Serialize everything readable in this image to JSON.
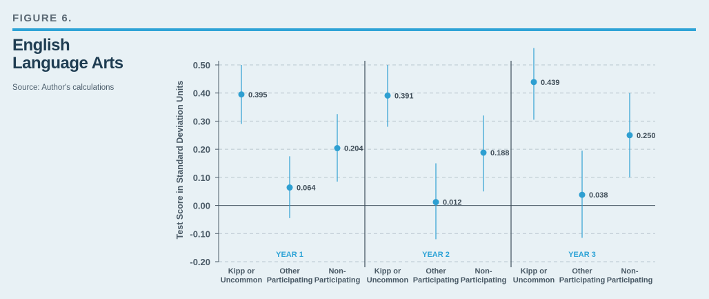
{
  "figure": {
    "label": "FIGURE 6.",
    "title_line1": "English",
    "title_line2": "Language Arts",
    "source": "Source: Author's calculations"
  },
  "colors": {
    "accent": "#2ea3d6",
    "point": "#2e9fd1",
    "title": "#1f3d52"
  },
  "chart_data": {
    "type": "scatter",
    "ylabel": "Test Score in Standard Deviation Units",
    "ylim": [
      -0.2,
      0.5
    ],
    "yticks": [
      "0.50",
      "0.40",
      "0.30",
      "0.20",
      "0.10",
      "0.00",
      "-0.10",
      "-0.20"
    ],
    "ytick_values": [
      0.5,
      0.4,
      0.3,
      0.2,
      0.1,
      0.0,
      -0.1,
      -0.2
    ],
    "grid": true,
    "panels": [
      {
        "name": "YEAR 1",
        "points": [
          {
            "cat1": "Kipp or",
            "cat2": "Uncommon",
            "value": 0.395,
            "label": "0.395",
            "low": 0.29,
            "high": 0.5
          },
          {
            "cat1": "Other",
            "cat2": "Participating",
            "value": 0.064,
            "label": "0.064",
            "low": -0.045,
            "high": 0.175
          },
          {
            "cat1": "Non-",
            "cat2": "Participating",
            "value": 0.204,
            "label": "0.204",
            "low": 0.085,
            "high": 0.325
          }
        ]
      },
      {
        "name": "YEAR 2",
        "points": [
          {
            "cat1": "Kipp or",
            "cat2": "Uncommon",
            "value": 0.391,
            "label": "0.391",
            "low": 0.28,
            "high": 0.5
          },
          {
            "cat1": "Other",
            "cat2": "Participating",
            "value": 0.012,
            "label": "0.012",
            "low": -0.12,
            "high": 0.15
          },
          {
            "cat1": "Non-",
            "cat2": "Participating",
            "value": 0.188,
            "label": "0.188",
            "low": 0.05,
            "high": 0.32
          }
        ]
      },
      {
        "name": "YEAR 3",
        "points": [
          {
            "cat1": "Kipp or",
            "cat2": "Uncommon",
            "value": 0.439,
            "label": "0.439",
            "low": 0.305,
            "high": 0.56
          },
          {
            "cat1": "Other",
            "cat2": "Participating",
            "value": 0.038,
            "label": "0.038",
            "low": -0.115,
            "high": 0.195
          },
          {
            "cat1": "Non-",
            "cat2": "Participating",
            "value": 0.25,
            "label": "0.250",
            "low": 0.1,
            "high": 0.4
          }
        ]
      }
    ]
  }
}
